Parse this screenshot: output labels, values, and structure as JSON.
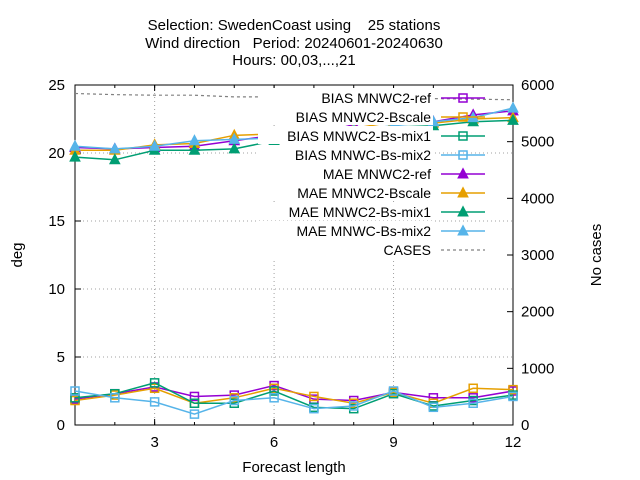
{
  "chart_data": {
    "type": "line",
    "title_lines": [
      "Selection: SwedenCoast using    25 stations",
      "Wind direction   Period: 20240601-20240630",
      "Hours: 00,03,...,21"
    ],
    "xlabel": "Forecast length",
    "ylabel": "deg",
    "y2label": "No cases",
    "xlim": [
      1,
      12
    ],
    "ylim": [
      0,
      25
    ],
    "y2lim": [
      0,
      6000
    ],
    "xticks": [
      "3",
      "6",
      "9",
      "12"
    ],
    "yticks": [
      "0",
      "5",
      "10",
      "15",
      "20",
      "25"
    ],
    "y2ticks": [
      "0",
      "1000",
      "2000",
      "3000",
      "4000",
      "5000",
      "6000"
    ],
    "grid": true,
    "legend_position": "top-right",
    "x": [
      1,
      2,
      3,
      4,
      5,
      6,
      7,
      8,
      9,
      10,
      11,
      12
    ],
    "series": [
      {
        "name": "BIAS MNWC2-ref",
        "color": "#9400d3",
        "marker": "open-square",
        "axis": "y1",
        "values": [
          1.9,
          2.3,
          2.8,
          2.1,
          2.2,
          2.9,
          1.9,
          1.8,
          2.4,
          2.0,
          2.0,
          2.5
        ]
      },
      {
        "name": "BIAS MNWC2-Bscale",
        "color": "#e69f00",
        "marker": "open-square",
        "axis": "y1",
        "values": [
          1.8,
          2.2,
          2.7,
          1.6,
          2.0,
          2.7,
          2.1,
          1.6,
          2.4,
          1.6,
          2.7,
          2.6
        ]
      },
      {
        "name": "BIAS MNWC2-Bs-mix1",
        "color": "#009e73",
        "marker": "open-square",
        "axis": "y1",
        "values": [
          2.0,
          2.3,
          3.1,
          1.6,
          1.6,
          2.5,
          1.3,
          1.2,
          2.3,
          1.4,
          1.8,
          2.2
        ]
      },
      {
        "name": "BIAS MNWC-Bs-mix2",
        "color": "#56b4e9",
        "marker": "open-square",
        "axis": "y1",
        "values": [
          2.5,
          2.0,
          1.7,
          0.8,
          1.8,
          2.0,
          1.2,
          1.4,
          2.5,
          1.3,
          1.6,
          2.1
        ]
      },
      {
        "name": "MAE MNWC2-ref",
        "color": "#9400d3",
        "marker": "triangle",
        "axis": "y1",
        "values": [
          20.4,
          20.3,
          20.4,
          20.5,
          20.9,
          21.3,
          21.3,
          22.1,
          22.2,
          22.3,
          22.8,
          23.1
        ]
      },
      {
        "name": "MAE MNWC2-Bscale",
        "color": "#e69f00",
        "marker": "triangle",
        "axis": "y1",
        "values": [
          20.2,
          20.2,
          20.6,
          20.7,
          21.3,
          21.4,
          21.5,
          21.8,
          22.3,
          22.2,
          22.5,
          22.6
        ]
      },
      {
        "name": "MAE MNWC2-Bs-mix1",
        "color": "#009e73",
        "marker": "triangle",
        "axis": "y1",
        "values": [
          19.7,
          19.5,
          20.2,
          20.2,
          20.3,
          20.9,
          21.2,
          21.4,
          21.9,
          22.0,
          22.3,
          22.4
        ]
      },
      {
        "name": "MAE MNWC-Bs-mix2",
        "color": "#56b4e9",
        "marker": "triangle",
        "axis": "y1",
        "values": [
          20.5,
          20.3,
          20.5,
          20.9,
          21.0,
          21.1,
          21.5,
          21.7,
          22.0,
          22.3,
          22.6,
          23.3
        ]
      },
      {
        "name": "CASES",
        "color": "#808080",
        "marker": "none",
        "dashed": true,
        "axis": "y2",
        "values": [
          5850,
          5830,
          5820,
          5820,
          5790,
          5790,
          5780,
          5780,
          5770,
          5760,
          5750,
          5740
        ]
      }
    ]
  }
}
